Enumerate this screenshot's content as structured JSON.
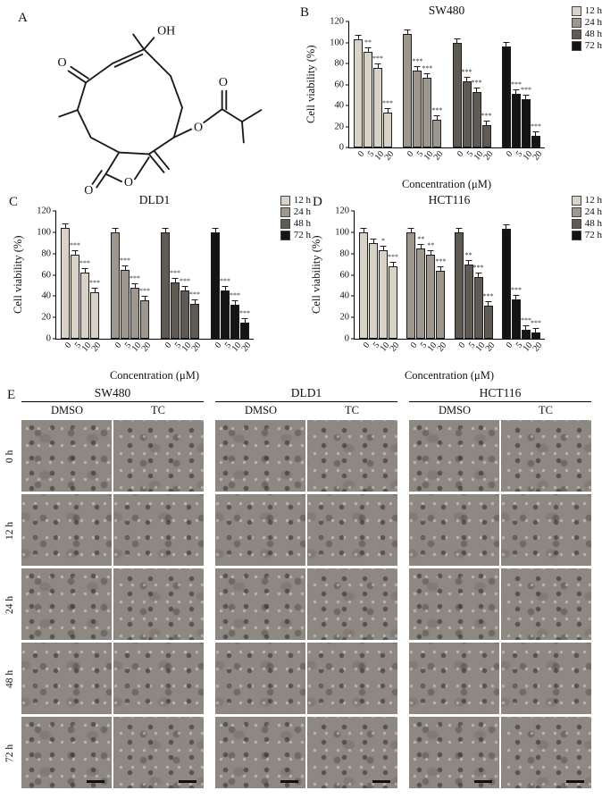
{
  "panels": {
    "a": "A",
    "b": "B",
    "c": "C",
    "d": "D",
    "e": "E"
  },
  "molecule": {
    "labels": {
      "hydroxyl": "OH",
      "ketone": "O",
      "ester_o": "O",
      "ester_carbonyl": "O",
      "lactone_o": "O",
      "lactone_carbonyl": "O"
    }
  },
  "chart_data": [
    {
      "type": "bar",
      "panel": "B",
      "title": "SW480",
      "ylabel": "Cell viability (%)",
      "xlabel": "Concentration (μM)",
      "ylim": [
        0,
        120
      ],
      "yticks": [
        0,
        20,
        40,
        60,
        80,
        100,
        120
      ],
      "categories": [
        "0",
        "5",
        "10",
        "20"
      ],
      "legend_position": "right-top",
      "colors": [
        "#d9d3c7",
        "#9e978e",
        "#5f5a54",
        "#141414"
      ],
      "series": [
        {
          "name": "12 h",
          "values": [
            103,
            91,
            76,
            33
          ],
          "sig": [
            "",
            "**",
            "***",
            "***"
          ]
        },
        {
          "name": "24 h",
          "values": [
            108,
            73,
            66,
            26
          ],
          "sig": [
            "",
            "***",
            "***",
            "***"
          ]
        },
        {
          "name": "48 h",
          "values": [
            100,
            63,
            53,
            21
          ],
          "sig": [
            "",
            "***",
            "***",
            "***"
          ]
        },
        {
          "name": "72 h",
          "values": [
            96,
            51,
            46,
            11
          ],
          "sig": [
            "",
            "***",
            "***",
            "***"
          ]
        }
      ]
    },
    {
      "type": "bar",
      "panel": "C",
      "title": "DLD1",
      "ylabel": "Cell viability (%)",
      "xlabel": "Concentration (μM)",
      "ylim": [
        0,
        120
      ],
      "yticks": [
        0,
        20,
        40,
        60,
        80,
        100,
        120
      ],
      "categories": [
        "0",
        "5",
        "10",
        "20"
      ],
      "legend_position": "right-top",
      "colors": [
        "#d9d3c7",
        "#9e978e",
        "#5f5a54",
        "#141414"
      ],
      "series": [
        {
          "name": "12 h",
          "values": [
            104,
            79,
            62,
            44
          ],
          "sig": [
            "",
            "***",
            "***",
            "***"
          ]
        },
        {
          "name": "24 h",
          "values": [
            100,
            65,
            48,
            36
          ],
          "sig": [
            "",
            "***",
            "***",
            "***"
          ]
        },
        {
          "name": "48 h",
          "values": [
            100,
            53,
            45,
            33
          ],
          "sig": [
            "",
            "***",
            "***",
            "***"
          ]
        },
        {
          "name": "72 h",
          "values": [
            100,
            45,
            32,
            15
          ],
          "sig": [
            "",
            "***",
            "***",
            "***"
          ]
        }
      ]
    },
    {
      "type": "bar",
      "panel": "D",
      "title": "HCT116",
      "ylabel": "Cell viability (%)",
      "xlabel": "Concentration (μM)",
      "ylim": [
        0,
        120
      ],
      "yticks": [
        0,
        20,
        40,
        60,
        80,
        100,
        120
      ],
      "categories": [
        "0",
        "5",
        "10",
        "20"
      ],
      "legend_position": "right-top",
      "colors": [
        "#d9d3c7",
        "#9e978e",
        "#5f5a54",
        "#141414"
      ],
      "series": [
        {
          "name": "12 h",
          "values": [
            100,
            90,
            83,
            68
          ],
          "sig": [
            "",
            "",
            "*",
            "***"
          ]
        },
        {
          "name": "24 h",
          "values": [
            100,
            85,
            79,
            64
          ],
          "sig": [
            "",
            "**",
            "**",
            "***"
          ]
        },
        {
          "name": "48 h",
          "values": [
            100,
            70,
            58,
            31
          ],
          "sig": [
            "",
            "**",
            "***",
            "***"
          ]
        },
        {
          "name": "72 h",
          "values": [
            103,
            37,
            8,
            6
          ],
          "sig": [
            "",
            "***",
            "***",
            "***"
          ]
        }
      ]
    }
  ],
  "panel_e": {
    "cell_lines": [
      "SW480",
      "DLD1",
      "HCT116"
    ],
    "treatments": [
      "DMSO",
      "TC"
    ],
    "timepoints": [
      "0 h",
      "12 h",
      "24 h",
      "48 h",
      "72 h"
    ]
  }
}
